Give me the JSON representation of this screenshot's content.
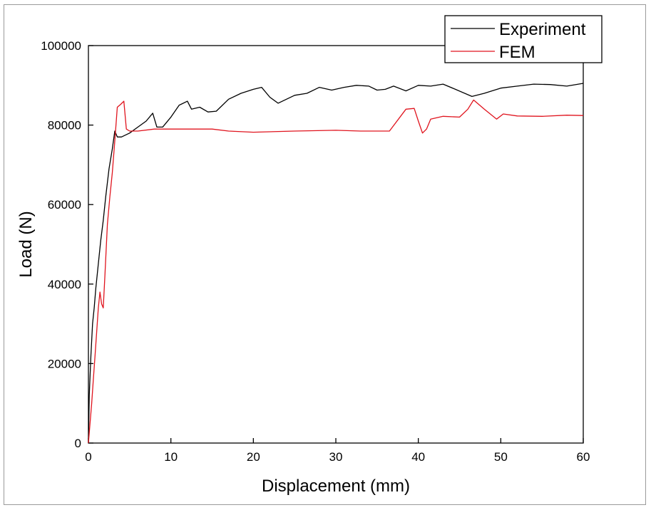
{
  "chart_data": {
    "type": "line",
    "title": "",
    "xlabel": "Displacement (mm)",
    "ylabel": "Load (N)",
    "xlim": [
      0,
      60
    ],
    "ylim": [
      0,
      100000
    ],
    "xticks": [
      0,
      10,
      20,
      30,
      40,
      50,
      60
    ],
    "yticks": [
      0,
      20000,
      40000,
      60000,
      80000,
      100000
    ],
    "grid": false,
    "legend_position": "top-right",
    "series": [
      {
        "name": "Experiment",
        "color": "#000000",
        "points": [
          [
            0,
            0
          ],
          [
            0.1,
            12000
          ],
          [
            0.3,
            22000
          ],
          [
            0.5,
            30000
          ],
          [
            0.7,
            34000
          ],
          [
            0.9,
            39000
          ],
          [
            1.1,
            43000
          ],
          [
            1.3,
            47000
          ],
          [
            1.5,
            51000
          ],
          [
            1.8,
            56000
          ],
          [
            2.1,
            62000
          ],
          [
            2.5,
            69000
          ],
          [
            2.9,
            74000
          ],
          [
            3.2,
            78500
          ],
          [
            3.5,
            77000
          ],
          [
            4.0,
            77000
          ],
          [
            5.0,
            78000
          ],
          [
            6.0,
            79500
          ],
          [
            7.0,
            81000
          ],
          [
            7.8,
            83000
          ],
          [
            8.3,
            79500
          ],
          [
            9.0,
            79500
          ],
          [
            10.0,
            82000
          ],
          [
            11.0,
            85000
          ],
          [
            12.0,
            86000
          ],
          [
            12.5,
            84000
          ],
          [
            13.5,
            84500
          ],
          [
            14.5,
            83300
          ],
          [
            15.5,
            83500
          ],
          [
            17.0,
            86500
          ],
          [
            18.5,
            88000
          ],
          [
            20.0,
            89000
          ],
          [
            21.0,
            89500
          ],
          [
            22.0,
            87000
          ],
          [
            23.0,
            85500
          ],
          [
            25.0,
            87500
          ],
          [
            26.5,
            88000
          ],
          [
            28.0,
            89500
          ],
          [
            29.5,
            88800
          ],
          [
            31.0,
            89500
          ],
          [
            32.5,
            90000
          ],
          [
            34.0,
            89800
          ],
          [
            35.0,
            88800
          ],
          [
            36.0,
            89000
          ],
          [
            37.0,
            89800
          ],
          [
            38.5,
            88600
          ],
          [
            40.0,
            90000
          ],
          [
            41.5,
            89800
          ],
          [
            43.0,
            90300
          ],
          [
            44.5,
            89000
          ],
          [
            46.5,
            87200
          ],
          [
            48.0,
            88000
          ],
          [
            50.0,
            89300
          ],
          [
            52.0,
            89800
          ],
          [
            54.0,
            90300
          ],
          [
            56.0,
            90200
          ],
          [
            58.0,
            89800
          ],
          [
            60.0,
            90500
          ]
        ]
      },
      {
        "name": "FEM",
        "color": "#e0141e",
        "points": [
          [
            0,
            0
          ],
          [
            0.2,
            5000
          ],
          [
            0.4,
            10000
          ],
          [
            0.6,
            16000
          ],
          [
            0.8,
            22000
          ],
          [
            1.0,
            28000
          ],
          [
            1.2,
            34000
          ],
          [
            1.4,
            38000
          ],
          [
            1.6,
            35000
          ],
          [
            1.8,
            34000
          ],
          [
            2.0,
            42000
          ],
          [
            2.3,
            55000
          ],
          [
            2.6,
            62000
          ],
          [
            2.9,
            68000
          ],
          [
            3.2,
            76000
          ],
          [
            3.5,
            84500
          ],
          [
            3.9,
            85200
          ],
          [
            4.3,
            86000
          ],
          [
            4.6,
            79000
          ],
          [
            5.0,
            78500
          ],
          [
            6.0,
            78500
          ],
          [
            8.0,
            79000
          ],
          [
            10.0,
            79000
          ],
          [
            12.0,
            79000
          ],
          [
            15.0,
            79000
          ],
          [
            17.0,
            78500
          ],
          [
            20.0,
            78200
          ],
          [
            25.0,
            78500
          ],
          [
            30.0,
            78700
          ],
          [
            33.0,
            78500
          ],
          [
            36.5,
            78500
          ],
          [
            38.5,
            84000
          ],
          [
            39.5,
            84200
          ],
          [
            40.0,
            81000
          ],
          [
            40.5,
            78000
          ],
          [
            41.0,
            79000
          ],
          [
            41.5,
            81500
          ],
          [
            43.0,
            82200
          ],
          [
            45.0,
            82000
          ],
          [
            46.0,
            84000
          ],
          [
            46.7,
            86300
          ],
          [
            48.0,
            84000
          ],
          [
            49.5,
            81500
          ],
          [
            50.3,
            82800
          ],
          [
            52.0,
            82300
          ],
          [
            55.0,
            82200
          ],
          [
            58.0,
            82500
          ],
          [
            60.0,
            82400
          ]
        ]
      }
    ]
  }
}
